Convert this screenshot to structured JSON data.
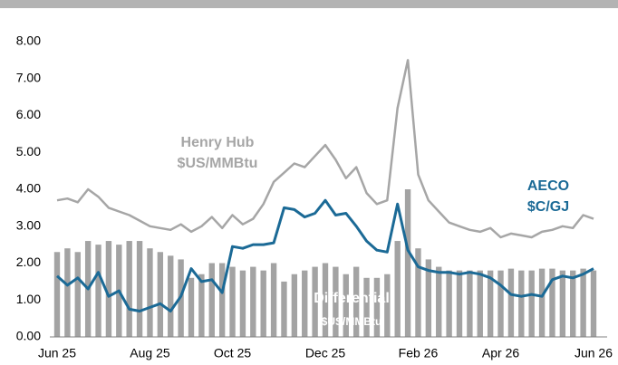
{
  "chart_data": {
    "type": "combo",
    "categories": [
      "Jun 25",
      null,
      null,
      null,
      null,
      null,
      null,
      null,
      null,
      "Aug 25",
      null,
      null,
      null,
      null,
      null,
      null,
      null,
      "Oct 25",
      null,
      null,
      null,
      null,
      null,
      null,
      null,
      null,
      "Dec 25",
      null,
      null,
      null,
      null,
      null,
      null,
      null,
      null,
      "Feb 26",
      null,
      null,
      null,
      null,
      null,
      null,
      null,
      "Apr 26",
      null,
      null,
      null,
      null,
      null,
      null,
      null,
      null,
      "Jun 26"
    ],
    "ylim": [
      0,
      8
    ],
    "yticks": [
      {
        "value": 0,
        "label": "0.00"
      },
      {
        "value": 1,
        "label": "1.00"
      },
      {
        "value": 2,
        "label": "2.00"
      },
      {
        "value": 3,
        "label": "3.00"
      },
      {
        "value": 4,
        "label": "4.00"
      },
      {
        "value": 5,
        "label": "5.00"
      },
      {
        "value": 6,
        "label": "6.00"
      },
      {
        "value": 7,
        "label": "7.00"
      },
      {
        "value": 8,
        "label": "8.00"
      }
    ],
    "grid": false,
    "series": [
      {
        "name": "Differential",
        "unit": "$US/MMBtu",
        "type": "bar",
        "color": "#a3a3a3",
        "values": [
          2.3,
          2.4,
          2.3,
          2.6,
          2.5,
          2.6,
          2.5,
          2.6,
          2.6,
          2.4,
          2.3,
          2.2,
          2.1,
          1.6,
          1.7,
          2.0,
          2.0,
          1.9,
          1.8,
          1.9,
          1.8,
          2.0,
          1.5,
          1.7,
          1.8,
          1.9,
          2.0,
          1.9,
          1.7,
          1.9,
          1.6,
          1.6,
          1.7,
          2.6,
          4.0,
          2.4,
          2.1,
          1.9,
          1.8,
          1.8,
          1.8,
          1.8,
          1.8,
          1.8,
          1.85,
          1.8,
          1.8,
          1.85,
          1.85,
          1.8,
          1.8,
          1.85,
          1.8
        ]
      },
      {
        "name": "Henry Hub",
        "unit": "$US/MMBtu",
        "type": "line",
        "color": "#a6a6a6",
        "values": [
          3.7,
          3.75,
          3.65,
          4.0,
          3.8,
          3.5,
          3.4,
          3.3,
          3.15,
          3.0,
          2.95,
          2.9,
          3.05,
          2.85,
          3.0,
          3.25,
          2.95,
          3.3,
          3.05,
          3.2,
          3.6,
          4.2,
          4.45,
          4.7,
          4.6,
          4.9,
          5.2,
          4.8,
          4.3,
          4.6,
          3.9,
          3.6,
          3.7,
          6.2,
          7.5,
          4.4,
          3.7,
          3.4,
          3.1,
          3.0,
          2.9,
          2.85,
          2.95,
          2.7,
          2.8,
          2.75,
          2.7,
          2.85,
          2.9,
          3.0,
          2.95,
          3.3,
          3.2
        ]
      },
      {
        "name": "AECO",
        "unit": "$C/GJ",
        "type": "line",
        "color": "#1b6a96",
        "values": [
          1.65,
          1.4,
          1.6,
          1.3,
          1.75,
          1.1,
          1.25,
          0.75,
          0.7,
          0.8,
          0.9,
          0.7,
          1.1,
          1.85,
          1.5,
          1.55,
          1.2,
          2.45,
          2.4,
          2.5,
          2.5,
          2.55,
          3.5,
          3.45,
          3.25,
          3.35,
          3.7,
          3.3,
          3.35,
          3.0,
          2.6,
          2.35,
          2.3,
          3.6,
          2.35,
          1.9,
          1.8,
          1.75,
          1.75,
          1.7,
          1.75,
          1.7,
          1.6,
          1.4,
          1.15,
          1.1,
          1.15,
          1.1,
          1.55,
          1.65,
          1.6,
          1.7,
          1.85
        ]
      }
    ]
  }
}
